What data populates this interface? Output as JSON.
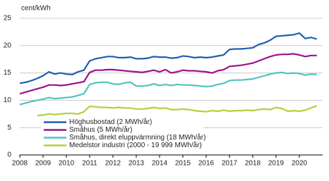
{
  "chart_data": {
    "type": "line",
    "ylabel": "cent/kWh",
    "x": [
      2008,
      2008.25,
      2008.5,
      2008.75,
      2009,
      2009.25,
      2009.5,
      2009.75,
      2010,
      2010.25,
      2010.5,
      2010.75,
      2011,
      2011.25,
      2011.5,
      2011.75,
      2012,
      2012.25,
      2012.5,
      2012.75,
      2013,
      2013.25,
      2013.5,
      2013.75,
      2014,
      2014.25,
      2014.5,
      2014.75,
      2015,
      2015.25,
      2015.5,
      2015.75,
      2016,
      2016.25,
      2016.5,
      2016.75,
      2017,
      2017.25,
      2017.5,
      2017.75,
      2018,
      2018.25,
      2018.5,
      2018.75,
      2019,
      2019.25,
      2019.5,
      2019.75,
      2020,
      2020.25,
      2020.5,
      2020.75
    ],
    "series": [
      {
        "name": "Höghusbostad (2 MWh/år)",
        "color": "#1b5fae",
        "values": [
          13.1,
          13.3,
          13.6,
          14.0,
          14.5,
          15.2,
          14.8,
          15.0,
          14.8,
          14.7,
          15.2,
          15.5,
          17.2,
          17.6,
          17.8,
          18.0,
          18.0,
          17.8,
          17.8,
          17.9,
          17.6,
          17.6,
          17.7,
          18.0,
          17.9,
          17.9,
          17.7,
          17.8,
          18.1,
          18.0,
          17.8,
          17.9,
          17.8,
          17.9,
          18.1,
          18.3,
          19.3,
          19.4,
          19.4,
          19.5,
          19.6,
          20.2,
          20.5,
          21.0,
          21.7,
          21.8,
          21.9,
          22.0,
          22.3,
          21.3,
          21.5,
          21.2
        ]
      },
      {
        "name": "Småhus (5 MWh/år)",
        "color": "#9c0f8f",
        "values": [
          11.2,
          11.5,
          11.8,
          12.1,
          12.4,
          12.8,
          12.8,
          12.7,
          12.8,
          13.0,
          13.2,
          13.4,
          15.1,
          15.5,
          15.5,
          15.6,
          15.6,
          15.5,
          15.4,
          15.3,
          15.2,
          15.1,
          15.3,
          15.5,
          15.2,
          15.6,
          15.0,
          15.2,
          15.5,
          15.4,
          15.4,
          15.3,
          15.2,
          15.0,
          15.4,
          15.6,
          16.2,
          16.3,
          16.4,
          16.6,
          16.8,
          17.2,
          17.6,
          18.0,
          18.3,
          18.4,
          18.4,
          18.5,
          18.3,
          18.0,
          18.2,
          18.2
        ]
      },
      {
        "name": "Småhus, direkt eluppvärmning (18 MWh/år)",
        "color": "#4fc4bf",
        "values": [
          9.2,
          9.5,
          9.8,
          10.0,
          10.2,
          10.5,
          10.3,
          10.4,
          10.5,
          10.6,
          10.9,
          11.2,
          12.9,
          13.2,
          13.3,
          13.3,
          13.0,
          12.9,
          13.2,
          13.3,
          12.6,
          12.6,
          12.7,
          13.0,
          12.7,
          12.9,
          12.7,
          12.9,
          12.8,
          12.8,
          12.7,
          12.6,
          12.5,
          12.6,
          12.9,
          13.1,
          13.6,
          13.7,
          13.7,
          13.8,
          13.9,
          14.2,
          14.5,
          14.8,
          15.0,
          15.1,
          14.9,
          15.0,
          14.9,
          14.6,
          14.8,
          14.7
        ]
      },
      {
        "name": "Medelstor industri (2000 - 19 999 MWh/år)",
        "color": "#b4cf3b",
        "values": [
          null,
          null,
          null,
          7.2,
          7.3,
          7.5,
          7.4,
          7.5,
          7.6,
          7.6,
          7.5,
          7.9,
          8.9,
          8.8,
          8.7,
          8.7,
          8.6,
          8.7,
          8.6,
          8.6,
          8.4,
          8.4,
          8.5,
          8.7,
          8.5,
          8.6,
          8.3,
          8.3,
          8.4,
          8.3,
          8.1,
          8.0,
          7.9,
          8.1,
          8.0,
          8.2,
          8.0,
          8.1,
          8.1,
          8.2,
          8.1,
          8.3,
          8.4,
          8.3,
          8.7,
          8.5,
          8.0,
          8.1,
          8.0,
          8.2,
          8.6,
          9.0
        ]
      }
    ],
    "xlim": [
      2008,
      2021
    ],
    "xticks": [
      2008,
      2009,
      2010,
      2011,
      2012,
      2013,
      2014,
      2015,
      2016,
      2017,
      2018,
      2019,
      2020
    ],
    "ylim": [
      0,
      25
    ],
    "yticks": [
      0,
      5,
      10,
      15,
      20,
      25
    ],
    "grid": true,
    "legend": "lower left"
  }
}
